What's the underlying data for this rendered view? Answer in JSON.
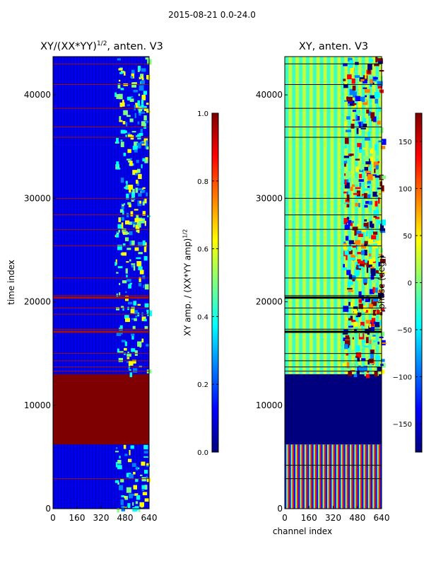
{
  "figure": {
    "suptitle": "2015-08-21 0.0-24.0"
  },
  "colors": {
    "jet": [
      "#00007f",
      "#0000ff",
      "#007fff",
      "#00ffff",
      "#7fff7f",
      "#ffff00",
      "#ff7f00",
      "#ff0000",
      "#7f0000"
    ],
    "axis": "#000000",
    "background": "#ffffff"
  },
  "chart_data": [
    {
      "type": "heatmap",
      "title": "XY/(XX*YY)1/2, anten. V3",
      "title_base": "XY/(XX*YY)",
      "title_sup": "1/2",
      "title_tail": ", anten. V3",
      "xlabel": "",
      "ylabel": "time index",
      "xlim": [
        0,
        640
      ],
      "ylim": [
        0,
        43700
      ],
      "x_ticks": [
        0,
        160,
        320,
        480,
        640
      ],
      "y_ticks": [
        0,
        10000,
        20000,
        30000,
        40000
      ],
      "description": "magnitude of normalized cross-correlation; block 6000-13000 saturated near 1.0",
      "time_bands": [
        {
          "y0": 0,
          "y1": 6200,
          "level": "low"
        },
        {
          "y0": 6200,
          "y1": 13000,
          "level": "saturated"
        },
        {
          "y0": 13000,
          "y1": 43700,
          "level": "low"
        }
      ],
      "horizontal_lines": [
        2900,
        13300,
        13700,
        14300,
        15000,
        17100,
        17350,
        18800,
        19400,
        20400,
        20600,
        22300,
        25400,
        27000,
        28400,
        30000,
        35900,
        36900,
        38700,
        41000,
        43000
      ],
      "colorbar": {
        "label": "XY amp. / (XX*YY amp)1/2",
        "label_base": "XY amp. / (XX*YY amp)",
        "label_sup": "1/2",
        "min": 0.0,
        "max": 1.0,
        "ticks": [
          "0.0",
          "0.2",
          "0.4",
          "0.6",
          "0.8",
          "1.0"
        ],
        "tick_values": [
          0,
          0.2,
          0.4,
          0.6,
          0.8,
          1.0
        ]
      }
    },
    {
      "type": "heatmap",
      "title": "XY, anten. V3",
      "xlabel": "channel index",
      "ylabel": "",
      "xlim": [
        0,
        640
      ],
      "ylim": [
        0,
        43700
      ],
      "x_ticks": [
        0,
        160,
        320,
        480,
        640
      ],
      "y_ticks": [
        0,
        10000,
        20000,
        30000,
        40000
      ],
      "description": "phase of cross-correlation; block 6000-13000 near -180 deg",
      "horizontal_lines": [
        2900,
        4200,
        13300,
        13700,
        14300,
        15000,
        17100,
        17350,
        18800,
        19400,
        20400,
        20600,
        22300,
        25400,
        27000,
        28400,
        30000,
        35900,
        36900,
        38700,
        41000,
        43000
      ],
      "colorbar": {
        "label": "phase (deg.)",
        "min": -180,
        "max": 180,
        "ticks": [
          "−150",
          "−100",
          "−50",
          "0",
          "50",
          "100",
          "150"
        ],
        "tick_values": [
          -150,
          -100,
          -50,
          0,
          50,
          100,
          150
        ]
      }
    }
  ]
}
